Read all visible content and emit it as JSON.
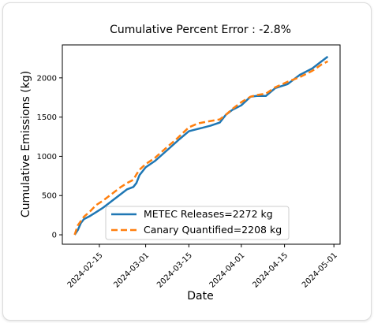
{
  "chart_data": {
    "type": "line",
    "title": "Cumulative Percent Error : -2.8%",
    "xlabel": "Date",
    "ylabel": "Cumulative Emissions (kg)",
    "x_type": "date",
    "xlim": [
      "2024-02-03",
      "2024-05-03"
    ],
    "ylim": [
      -120,
      2420
    ],
    "x_ticks": [
      "2024-02-15",
      "2024-03-01",
      "2024-03-15",
      "2024-04-01",
      "2024-04-15",
      "2024-05-01"
    ],
    "y_ticks": [
      0,
      500,
      1000,
      1500,
      2000
    ],
    "grid": false,
    "legend_position": "lower-right",
    "series": [
      {
        "name": "METEC Releases=2272 kg",
        "color": "#1f77b4",
        "style": "solid",
        "x": [
          "2024-02-07",
          "2024-02-08",
          "2024-02-09",
          "2024-02-10",
          "2024-02-12",
          "2024-02-14",
          "2024-02-16",
          "2024-02-18",
          "2024-02-20",
          "2024-02-22",
          "2024-02-24",
          "2024-02-26",
          "2024-02-27",
          "2024-02-28",
          "2024-03-01",
          "2024-03-04",
          "2024-03-08",
          "2024-03-12",
          "2024-03-15",
          "2024-03-17",
          "2024-03-22",
          "2024-03-25",
          "2024-03-27",
          "2024-03-29",
          "2024-04-01",
          "2024-04-04",
          "2024-04-06",
          "2024-04-09",
          "2024-04-12",
          "2024-04-16",
          "2024-04-20",
          "2024-04-24",
          "2024-04-27",
          "2024-04-29"
        ],
        "y": [
          0,
          60,
          150,
          200,
          240,
          290,
          340,
          400,
          460,
          520,
          580,
          610,
          660,
          760,
          860,
          940,
          1080,
          1220,
          1320,
          1340,
          1390,
          1430,
          1530,
          1590,
          1650,
          1760,
          1770,
          1770,
          1870,
          1920,
          2040,
          2120,
          2210,
          2270
        ]
      },
      {
        "name": "Canary Quantified=2208 kg",
        "color": "#ff7f0e",
        "style": "dashed",
        "x": [
          "2024-02-07",
          "2024-02-08",
          "2024-02-10",
          "2024-02-12",
          "2024-02-14",
          "2024-02-16",
          "2024-02-18",
          "2024-02-20",
          "2024-02-22",
          "2024-02-24",
          "2024-02-26",
          "2024-02-27",
          "2024-02-28",
          "2024-03-01",
          "2024-03-04",
          "2024-03-08",
          "2024-03-11",
          "2024-03-15",
          "2024-03-18",
          "2024-03-22",
          "2024-03-25",
          "2024-03-27",
          "2024-03-29",
          "2024-04-01",
          "2024-04-04",
          "2024-04-06",
          "2024-04-09",
          "2024-04-12",
          "2024-04-16",
          "2024-04-20",
          "2024-04-24",
          "2024-04-27",
          "2024-04-29"
        ],
        "y": [
          0,
          120,
          230,
          300,
          380,
          430,
          490,
          550,
          610,
          660,
          700,
          770,
          830,
          900,
          980,
          1120,
          1220,
          1370,
          1420,
          1450,
          1470,
          1530,
          1600,
          1690,
          1760,
          1780,
          1800,
          1880,
          1950,
          2010,
          2090,
          2170,
          2210
        ]
      }
    ]
  }
}
